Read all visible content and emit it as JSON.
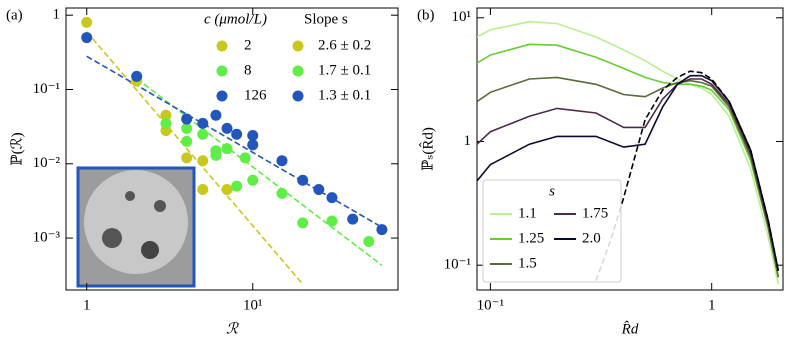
{
  "chart_data": [
    {
      "type": "scatter",
      "panel_label": "(a)",
      "xlabel": "ℛ",
      "ylabel": "ℙ(ℛ)",
      "xlog": true,
      "ylog": true,
      "xlim": [
        0.75,
        75
      ],
      "ylim": [
        0.0002,
        1.25
      ],
      "xticks": [
        1,
        {
          "value": 10,
          "label": "10¹"
        }
      ],
      "yticks": [
        {
          "value": 0.001,
          "label": "10⁻³"
        },
        {
          "value": 0.01,
          "label": "10⁻²"
        },
        {
          "value": 0.1,
          "label": "10⁻¹"
        },
        1
      ],
      "legend_title": "c (μmol/L)",
      "legend_title2": "Slope s",
      "series": [
        {
          "name": "2",
          "slope": "2.6 ± 0.2",
          "color": "#c8c81e",
          "x": [
            1,
            2,
            3,
            3,
            4,
            5,
            5,
            7
          ],
          "values": [
            0.8,
            0.13,
            0.045,
            0.028,
            0.012,
            0.011,
            0.0045,
            0.0045
          ]
        },
        {
          "name": "8",
          "slope": "1.7 ± 0.1",
          "color": "#5fee46",
          "x": [
            2,
            3,
            4,
            4,
            5,
            6,
            6,
            7,
            8,
            9,
            10,
            15,
            20,
            30,
            50
          ],
          "values": [
            0.15,
            0.035,
            0.03,
            0.02,
            0.025,
            0.015,
            0.013,
            0.016,
            0.005,
            0.012,
            0.006,
            0.004,
            0.0016,
            0.0017,
            0.0009
          ]
        },
        {
          "name": "126",
          "slope": "1.3 ± 0.1",
          "color": "#2356bb",
          "x": [
            1,
            2,
            4,
            5,
            6,
            7,
            8,
            10,
            10,
            15,
            20,
            25,
            30,
            40,
            60
          ],
          "values": [
            0.5,
            0.15,
            0.04,
            0.035,
            0.045,
            0.03,
            0.025,
            0.024,
            0.018,
            0.011,
            0.006,
            0.0045,
            0.0035,
            0.0018,
            0.0013
          ]
        }
      ],
      "fit_lines": [
        {
          "color": "#c8c81e",
          "x": [
            1,
            20
          ],
          "values": [
            0.6,
            0.00024
          ]
        },
        {
          "color": "#5fee46",
          "x": [
            2,
            60
          ],
          "values": [
            0.14,
            0.00043
          ]
        },
        {
          "color": "#2356bb",
          "x": [
            1,
            60
          ],
          "values": [
            0.28,
            0.0014
          ]
        }
      ]
    },
    {
      "type": "line",
      "panel_label": "(b)",
      "xlabel": "R̂d",
      "ylabel": "ℙₛ(R̂d)",
      "xlog": true,
      "ylog": true,
      "xlim": [
        0.087,
        2.1
      ],
      "ylim": [
        0.063,
        12
      ],
      "xticks": [
        {
          "value": 0.1,
          "label": "10⁻¹"
        },
        1
      ],
      "yticks": [
        {
          "value": 0.1,
          "label": "10⁻¹"
        },
        1,
        {
          "value": 10,
          "label": "10¹"
        }
      ],
      "legend_title": "s",
      "x": [
        0.087,
        0.1,
        0.15,
        0.2,
        0.3,
        0.4,
        0.5,
        0.6,
        0.7,
        0.8,
        0.9,
        1.0,
        1.2,
        1.5,
        1.8,
        2.0
      ],
      "series": [
        {
          "name": "1.1",
          "color": "#b8f090",
          "values": [
            7,
            8,
            9.3,
            9,
            7,
            5.5,
            4.5,
            3.7,
            3.2,
            2.9,
            2.7,
            2.4,
            1.6,
            0.6,
            0.17,
            0.07
          ]
        },
        {
          "name": "1.25",
          "color": "#66cc33",
          "values": [
            4.3,
            5,
            6.1,
            6,
            4.8,
            3.9,
            3.3,
            3,
            2.9,
            2.9,
            2.8,
            2.6,
            1.8,
            0.7,
            0.2,
            0.08
          ]
        },
        {
          "name": "1.5",
          "color": "#5a6b3a",
          "values": [
            2.1,
            2.5,
            3.2,
            3.3,
            2.9,
            2.4,
            2.3,
            2.7,
            3.0,
            3.1,
            3.0,
            2.8,
            1.9,
            0.75,
            0.2,
            0.08
          ]
        },
        {
          "name": "1.75",
          "color": "#4d2a4a",
          "values": [
            0.95,
            1.2,
            1.6,
            1.85,
            1.7,
            1.3,
            1.3,
            2.2,
            2.9,
            3.2,
            3.2,
            2.9,
            2.0,
            0.8,
            0.22,
            0.09
          ]
        },
        {
          "name": "2.0",
          "color": "#0a0a2e",
          "values": [
            0.48,
            0.65,
            0.95,
            1.1,
            1.1,
            0.9,
            0.95,
            1.9,
            2.9,
            3.4,
            3.4,
            3.1,
            2.1,
            0.85,
            0.23,
            0.09
          ]
        }
      ],
      "limit_curve": {
        "color": "#000000",
        "x": [
          0.3,
          0.35,
          0.4,
          0.5,
          0.6,
          0.7,
          0.8,
          0.9,
          1.0,
          1.2,
          1.5,
          1.8,
          2.0
        ],
        "values": [
          0.075,
          0.16,
          0.35,
          1.5,
          2.6,
          3.3,
          3.7,
          3.6,
          3.2,
          2.1,
          0.85,
          0.23,
          0.09
        ]
      }
    }
  ]
}
